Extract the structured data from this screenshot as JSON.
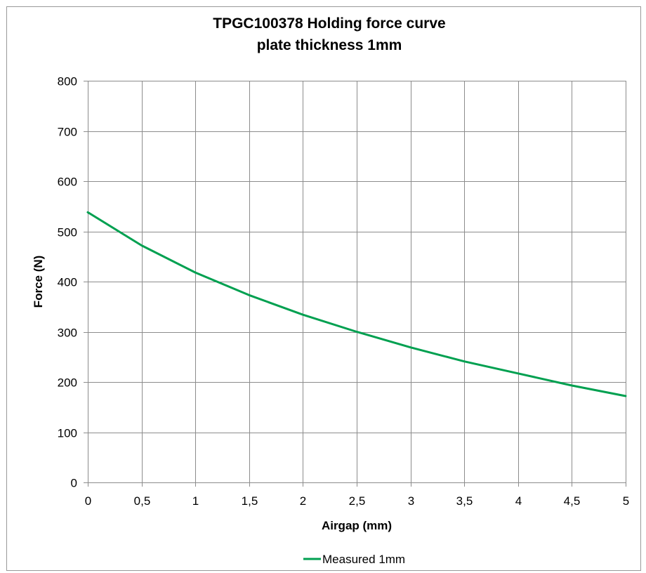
{
  "chart_data": {
    "type": "line",
    "title_line1": "TPGC100378   Holding force curve",
    "title_line2": "plate thickness 1mm",
    "xlabel": "Airgap (mm)",
    "ylabel": "Force (N)",
    "x_ticks": [
      "0",
      "0,5",
      "1",
      "1,5",
      "2",
      "2,5",
      "3",
      "3,5",
      "4",
      "4,5",
      "5"
    ],
    "y_ticks": [
      "0",
      "100",
      "200",
      "300",
      "400",
      "500",
      "600",
      "700",
      "800"
    ],
    "xlim": [
      0,
      5
    ],
    "ylim": [
      0,
      800
    ],
    "grid": true,
    "legend_position": "bottom",
    "series": [
      {
        "name": "Measured 1mm",
        "color": "#00a050",
        "x": [
          0,
          0.5,
          1,
          1.5,
          2,
          2.5,
          3,
          3.5,
          4,
          4.5,
          5
        ],
        "y": [
          538,
          472,
          418,
          373,
          334,
          300,
          269,
          241,
          217,
          193,
          172
        ]
      }
    ]
  }
}
